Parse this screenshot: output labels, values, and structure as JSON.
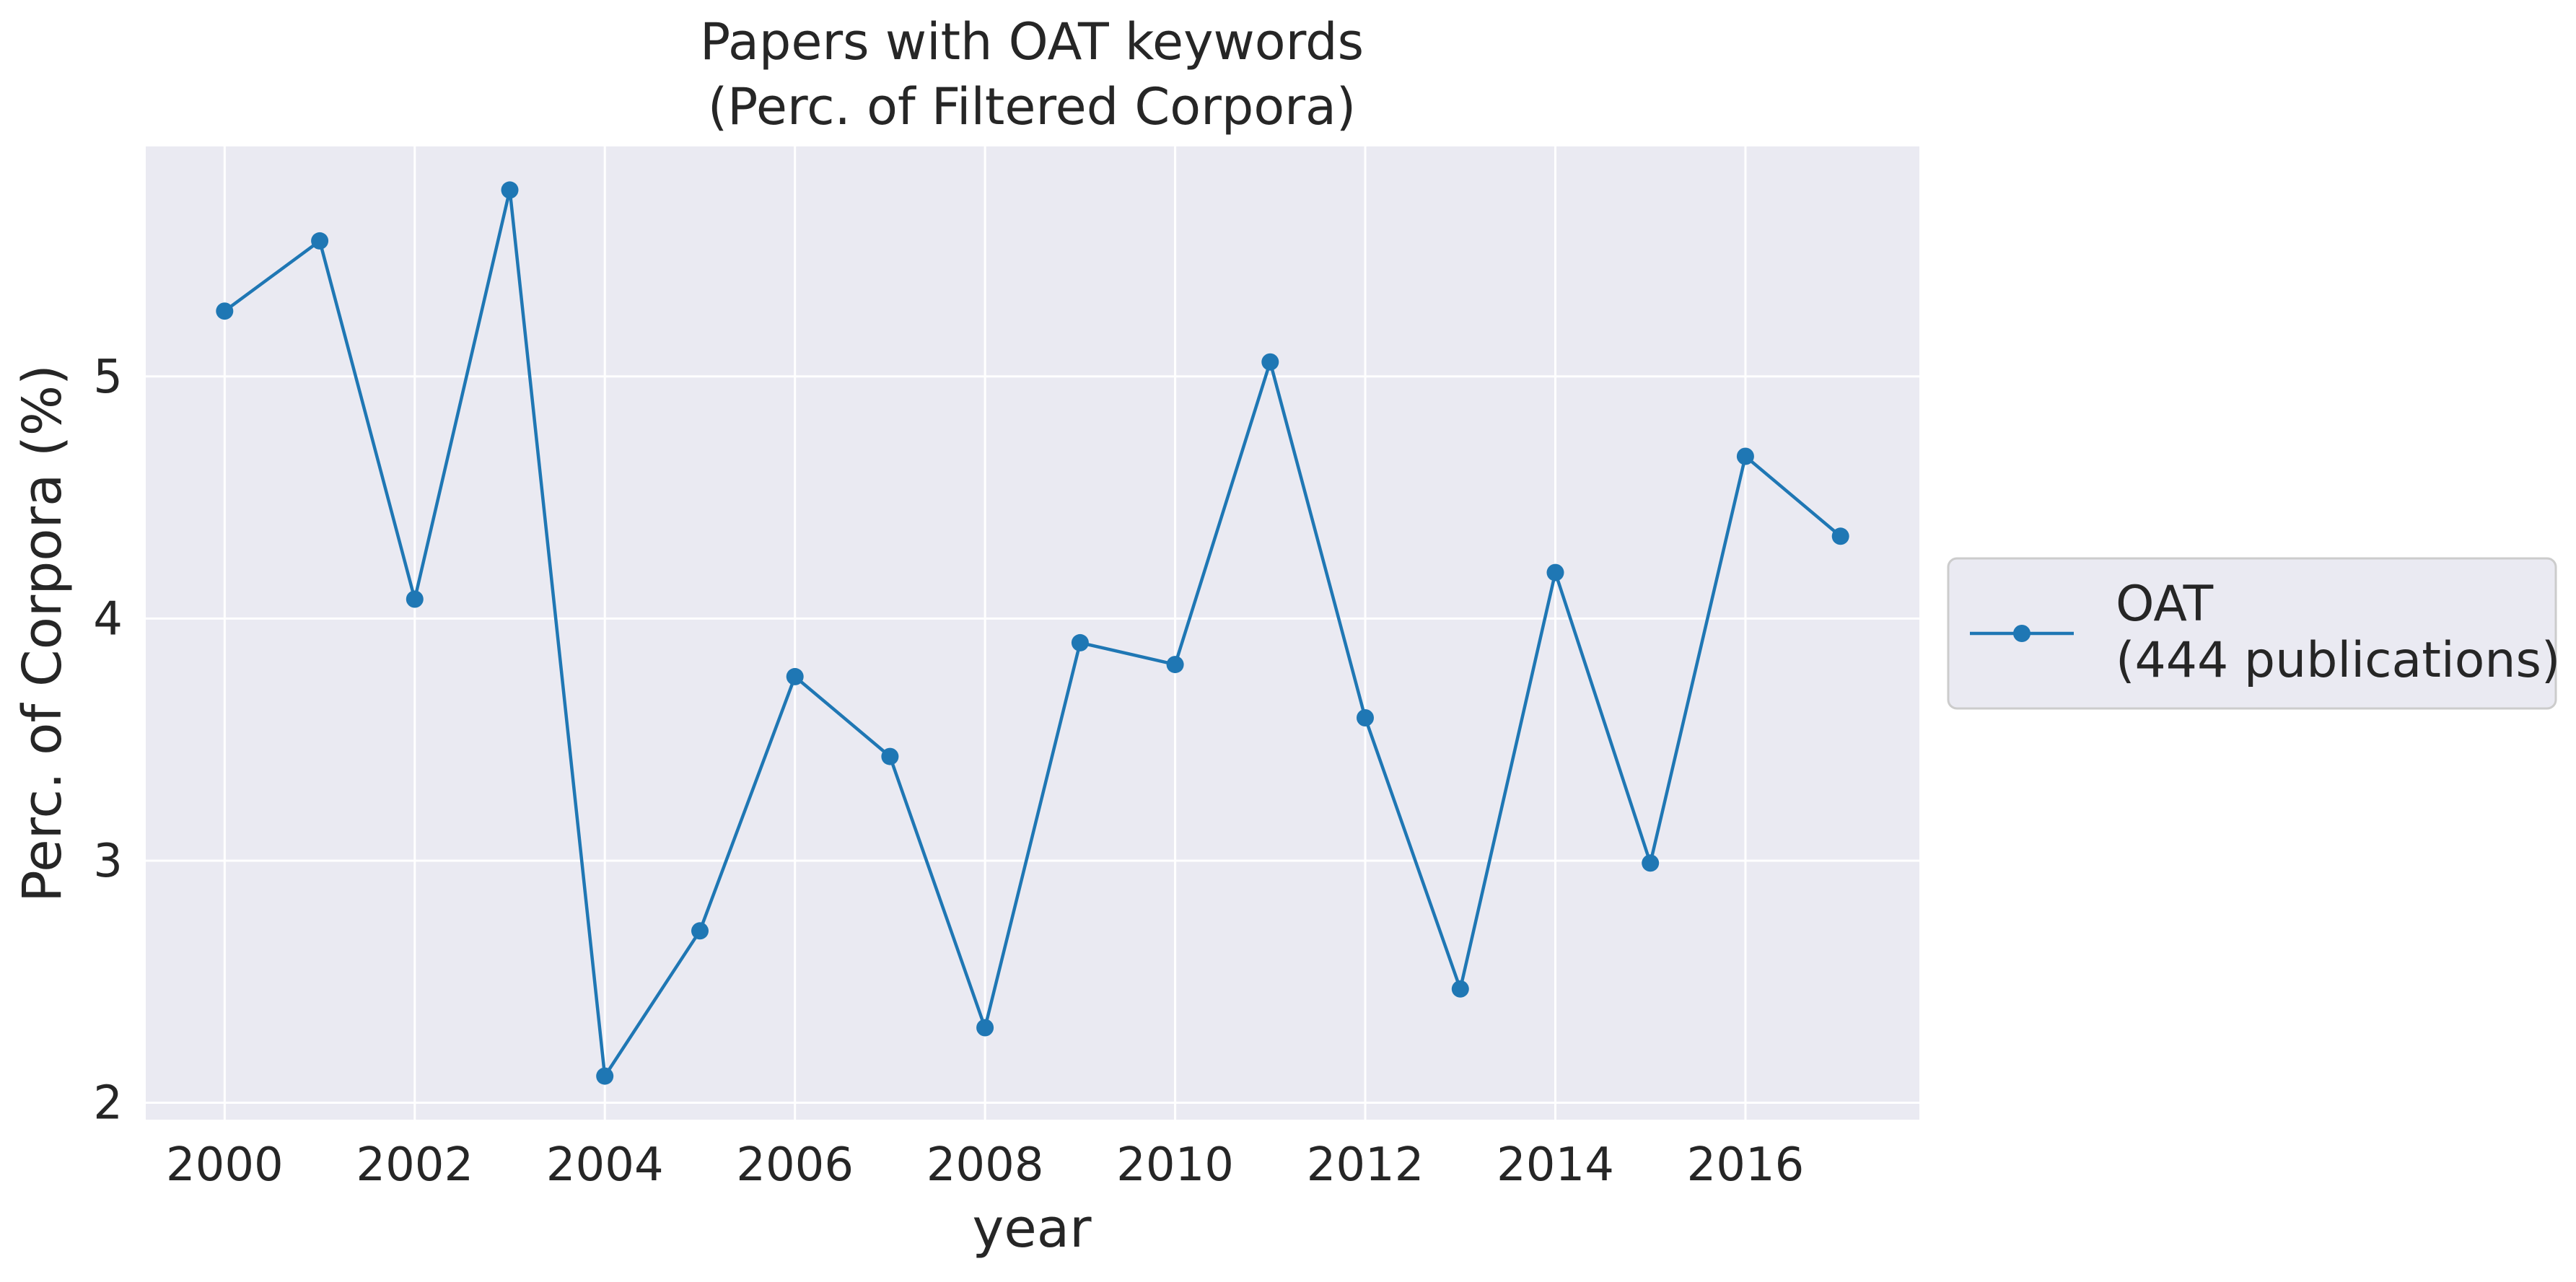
{
  "chart_data": {
    "type": "line",
    "title": "Papers with OAT keywords",
    "subtitle": "(Perc. of Filtered Corpora)",
    "xlabel": "year",
    "ylabel": "Perc. of Corpora (%)",
    "x": [
      2000,
      2001,
      2002,
      2003,
      2004,
      2005,
      2006,
      2007,
      2008,
      2009,
      2010,
      2011,
      2012,
      2013,
      2014,
      2015,
      2016,
      2017
    ],
    "series": [
      {
        "name": "OAT\n(444 publications)",
        "legend_lines": [
          "OAT",
          "(444 publications)"
        ],
        "values": [
          5.27,
          5.56,
          4.08,
          5.77,
          2.11,
          2.71,
          3.76,
          3.43,
          2.31,
          3.9,
          3.81,
          5.06,
          3.59,
          2.47,
          4.19,
          2.99,
          4.67,
          4.34
        ],
        "color": "#1f77b4"
      }
    ],
    "xlim": [
      1999.17,
      2017.83
    ],
    "ylim": [
      1.93,
      5.95
    ],
    "xticks": [
      "2000",
      "2002",
      "2004",
      "2006",
      "2008",
      "2010",
      "2012",
      "2014",
      "2016"
    ],
    "yticks": [
      "2",
      "3",
      "4",
      "5"
    ],
    "grid": true,
    "legend_position": "right-outside",
    "plot_background": "#eaeaf2",
    "grid_color": "#ffffff"
  }
}
